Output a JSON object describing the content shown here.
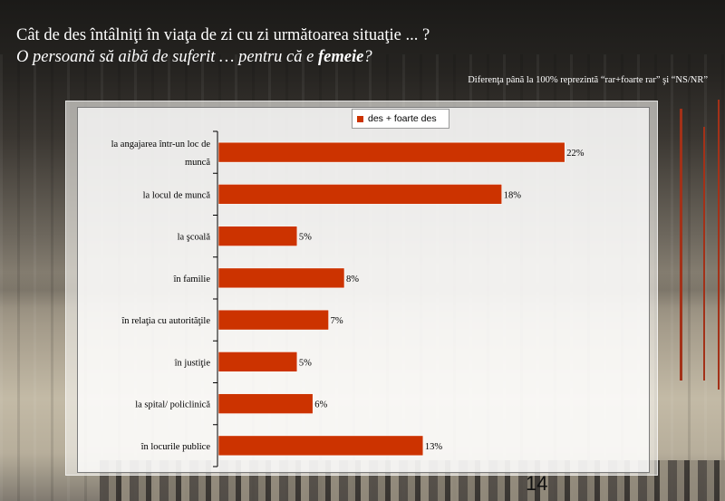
{
  "slide": {
    "title_line1": "Cât de des întâlniţi în viaţa de zi cu zi următoarea situaţie ... ?",
    "title_line2_prefix": "O persoană să aibă de suferit … pentru că e ",
    "title_line2_bold": "femeie",
    "title_line2_suffix": "?",
    "note": "Diferenţa până la 100% reprezintă  “rar+foarte rar” şi “NS/NR”",
    "page_number": "14"
  },
  "colors": {
    "bar": "#cc3300",
    "accent": "#a33118"
  },
  "chart_data": {
    "type": "bar",
    "orientation": "horizontal",
    "categories": [
      [
        "la angajarea într-un loc de",
        "muncă"
      ],
      [
        "la locul de muncă"
      ],
      [
        "la şcoală"
      ],
      [
        "în familie"
      ],
      [
        "în relaţia cu autorităţile"
      ],
      [
        "în justiţie"
      ],
      [
        "la spital/ policlinică"
      ],
      [
        "în locurile publice"
      ]
    ],
    "series": [
      {
        "name": "des + foarte des",
        "values": [
          22,
          18,
          5,
          8,
          7,
          5,
          6,
          13
        ]
      }
    ],
    "value_labels": [
      "22%",
      "18%",
      "5%",
      "8%",
      "7%",
      "5%",
      "6%",
      "13%"
    ],
    "xlim": [
      0,
      24
    ],
    "legend_position": "top-center",
    "grid": false
  }
}
